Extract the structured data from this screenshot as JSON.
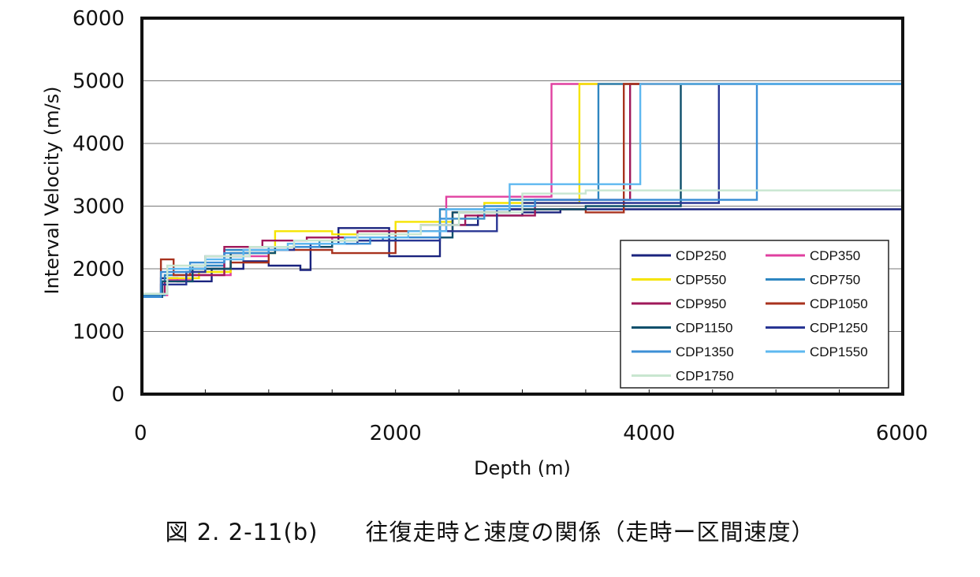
{
  "caption": "図 2. 2-11(b)　　往復走時と速度の関係（走時ー区間速度）",
  "chart_data": {
    "type": "line",
    "step": true,
    "title": "",
    "xlabel": "Depth (m)",
    "ylabel": "Interval Velocity (m/s)",
    "xlim": [
      0,
      6000
    ],
    "ylim": [
      0,
      6000
    ],
    "xticks": [
      0,
      2000,
      4000,
      6000
    ],
    "yticks": [
      0,
      1000,
      2000,
      3000,
      4000,
      5000,
      6000
    ],
    "grid": "horizontal",
    "legend_position": "bottom-right",
    "series": [
      {
        "name": "CDP250",
        "color": "#1a237e",
        "x": [
          0,
          150,
          280,
          550,
          800,
          1000,
          1250,
          1330,
          1550,
          1950,
          2350,
          2650,
          3000,
          3300,
          6000
        ],
        "y": [
          1600,
          1850,
          1800,
          2000,
          2120,
          2050,
          1980,
          2400,
          2650,
          2200,
          2700,
          2850,
          2900,
          2950,
          2950
        ]
      },
      {
        "name": "CDP350",
        "color": "#e040a0",
        "x": [
          0,
          200,
          400,
          700,
          1000,
          1500,
          2000,
          2400,
          2800,
          3230,
          6000
        ],
        "y": [
          1580,
          1820,
          1900,
          2200,
          2350,
          2500,
          2600,
          3150,
          3150,
          4950,
          4950
        ]
      },
      {
        "name": "CDP550",
        "color": "#f5e400",
        "x": [
          0,
          200,
          450,
          700,
          1050,
          1500,
          2000,
          2450,
          2700,
          3450,
          6000
        ],
        "y": [
          1600,
          1850,
          1950,
          2250,
          2600,
          2550,
          2750,
          2800,
          3050,
          4950,
          4950
        ]
      },
      {
        "name": "CDP750",
        "color": "#2e86c1",
        "x": [
          0,
          180,
          400,
          650,
          1000,
          1400,
          1900,
          2350,
          2900,
          3600,
          6000
        ],
        "y": [
          1580,
          1900,
          2050,
          2300,
          2350,
          2450,
          2500,
          2950,
          3100,
          4950,
          4950
        ]
      },
      {
        "name": "CDP950",
        "color": "#a0185a",
        "x": [
          0,
          180,
          350,
          650,
          950,
          1300,
          1700,
          2200,
          2550,
          3100,
          3850,
          6000
        ],
        "y": [
          1600,
          1800,
          1900,
          2350,
          2450,
          2500,
          2600,
          2700,
          2850,
          3100,
          4950,
          4950
        ]
      },
      {
        "name": "CDP1050",
        "color": "#a8321e",
        "x": [
          0,
          150,
          250,
          380,
          700,
          1000,
          1500,
          2000,
          2450,
          2900,
          3500,
          3800,
          6000
        ],
        "y": [
          1550,
          2150,
          1900,
          2000,
          2100,
          2300,
          2250,
          2600,
          2900,
          2950,
          2900,
          4950,
          4950
        ]
      },
      {
        "name": "CDP1150",
        "color": "#0d4f6b",
        "x": [
          0,
          160,
          400,
          700,
          1050,
          1500,
          2000,
          2450,
          2900,
          3500,
          4250,
          6000
        ],
        "y": [
          1550,
          1800,
          2000,
          2250,
          2350,
          2450,
          2500,
          2900,
          2950,
          3000,
          4950,
          4950
        ]
      },
      {
        "name": "CDP1250",
        "color": "#283593",
        "x": [
          0,
          150,
          350,
          500,
          800,
          1200,
          1700,
          2350,
          2800,
          3000,
          4550,
          6000
        ],
        "y": [
          1550,
          1750,
          1950,
          2200,
          2300,
          2400,
          2450,
          2600,
          2950,
          3050,
          4950,
          4950
        ]
      },
      {
        "name": "CDP1350",
        "color": "#3c8fd6",
        "x": [
          0,
          150,
          380,
          650,
          1000,
          1400,
          1800,
          2350,
          2700,
          3100,
          4850,
          6000
        ],
        "y": [
          1550,
          1950,
          2100,
          2250,
          2350,
          2400,
          2500,
          2800,
          3000,
          3100,
          4950,
          4950
        ]
      },
      {
        "name": "CDP1550",
        "color": "#5eb8f0",
        "x": [
          0,
          200,
          500,
          800,
          1150,
          1600,
          2100,
          2400,
          2900,
          3400,
          3930,
          6000
        ],
        "y": [
          1600,
          2000,
          2150,
          2300,
          2400,
          2500,
          2600,
          2950,
          3350,
          3350,
          4950,
          4950
        ]
      },
      {
        "name": "CDP1750",
        "color": "#c8e6d0",
        "x": [
          0,
          200,
          500,
          850,
          1200,
          1700,
          2200,
          2500,
          3000,
          3500,
          6000
        ],
        "y": [
          1600,
          2050,
          2200,
          2350,
          2450,
          2550,
          2700,
          2900,
          3200,
          3250,
          3250
        ]
      }
    ]
  }
}
